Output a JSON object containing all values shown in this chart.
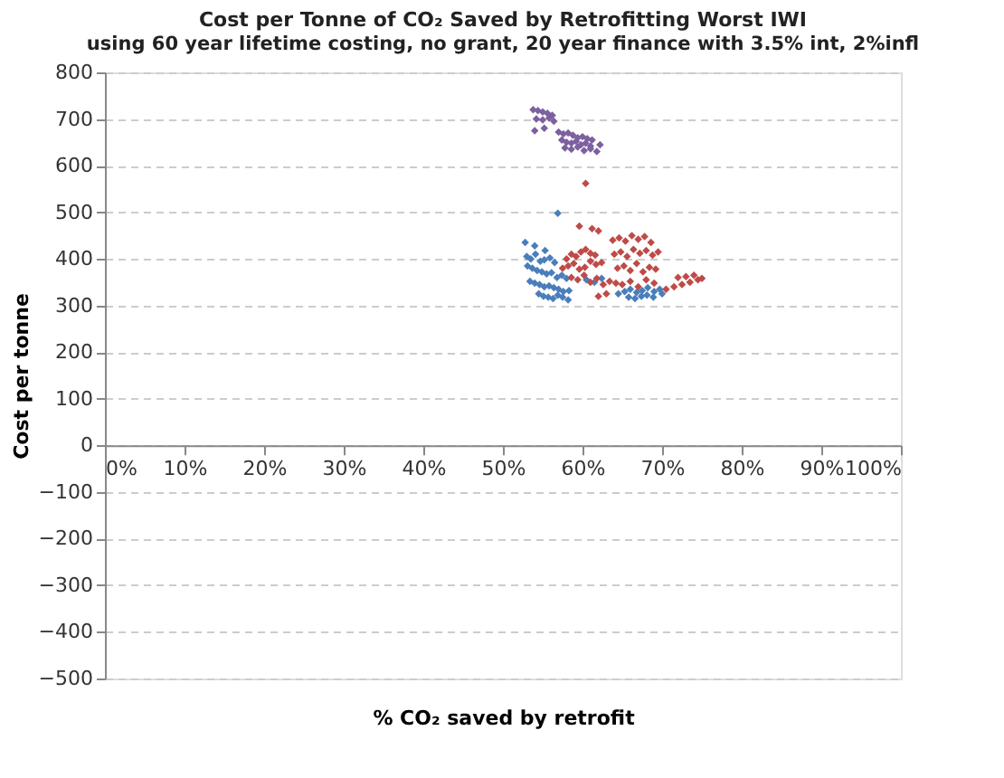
{
  "chart_data": {
    "type": "scatter",
    "title": "Cost per Tonne of CO₂ Saved by Retrofitting Worst IWI",
    "subtitle": "using 60 year lifetime costing, no grant, 20 year finance with 3.5% int, 2%infl",
    "xlabel": "% CO₂ saved by retrofit",
    "ylabel": "Cost per tonne",
    "xlim": [
      0,
      100
    ],
    "ylim": [
      -500,
      800
    ],
    "xticks": [
      {
        "value": 0,
        "label": "0%"
      },
      {
        "value": 10,
        "label": "10%"
      },
      {
        "value": 20,
        "label": "20%"
      },
      {
        "value": 30,
        "label": "30%"
      },
      {
        "value": 40,
        "label": "40%"
      },
      {
        "value": 50,
        "label": "50%"
      },
      {
        "value": 60,
        "label": "60%"
      },
      {
        "value": 70,
        "label": "70%"
      },
      {
        "value": 80,
        "label": "80%"
      },
      {
        "value": 90,
        "label": "90%"
      },
      {
        "value": 100,
        "label": "100%"
      }
    ],
    "yticks": [
      -500,
      -400,
      -300,
      -200,
      -100,
      0,
      100,
      200,
      300,
      400,
      500,
      600,
      700,
      800
    ],
    "grid": "y",
    "marker": "diamond",
    "series": [
      {
        "color": "#4a7ebb",
        "x": [
          52.8,
          54.0,
          55.3,
          53.0,
          53.5,
          54.1,
          54.7,
          55.2,
          55.9,
          56.5,
          53.1,
          53.7,
          54.3,
          54.9,
          55.5,
          56.1,
          56.8,
          57.4,
          58.0,
          53.4,
          54.0,
          54.6,
          55.2,
          55.8,
          56.4,
          57.0,
          57.6,
          58.3,
          54.5,
          55.1,
          55.7,
          56.3,
          56.9,
          57.5,
          58.2,
          56.9,
          60.5,
          61.5,
          62.4,
          64.5,
          65.3,
          66.0,
          66.8,
          67.5,
          68.2,
          69.0,
          69.7,
          65.8,
          66.6,
          67.4,
          68.1,
          68.9,
          70.0
        ],
        "values": [
          435,
          428,
          418,
          405,
          400,
          410,
          395,
          398,
          402,
          392,
          385,
          380,
          375,
          372,
          368,
          370,
          360,
          365,
          358,
          352,
          348,
          345,
          340,
          342,
          338,
          335,
          330,
          332,
          325,
          320,
          318,
          315,
          322,
          318,
          312,
          498,
          355,
          350,
          358,
          325,
          330,
          335,
          328,
          332,
          338,
          330,
          335,
          318,
          315,
          320,
          322,
          318,
          325
        ]
      },
      {
        "color": "#be4b48",
        "x": [
          60.4,
          59.6,
          61.2,
          62.0,
          58.0,
          58.6,
          59.2,
          59.8,
          60.4,
          61.0,
          61.6,
          57.5,
          58.2,
          58.9,
          59.6,
          60.3,
          61.0,
          61.7,
          62.4,
          58.6,
          59.4,
          60.2,
          61.0,
          61.8,
          62.6,
          63.4,
          64.2,
          63.8,
          64.6,
          65.4,
          66.2,
          67.0,
          67.8,
          68.6,
          64.0,
          64.8,
          65.6,
          66.4,
          67.2,
          68.0,
          68.8,
          69.5,
          64.4,
          65.2,
          66.0,
          66.8,
          67.6,
          68.4,
          69.2,
          65.0,
          66.0,
          67.0,
          68.0,
          69.0,
          70.5,
          71.5,
          72.5,
          73.5,
          74.5,
          72.0,
          73.0,
          74.0,
          75.0,
          62.0,
          63.0
        ],
        "values": [
          562,
          470,
          465,
          460,
          400,
          410,
          405,
          415,
          420,
          412,
          408,
          380,
          385,
          390,
          378,
          382,
          395,
          388,
          392,
          360,
          355,
          365,
          350,
          358,
          345,
          352,
          348,
          440,
          445,
          438,
          450,
          442,
          448,
          435,
          410,
          415,
          405,
          420,
          412,
          418,
          408,
          415,
          380,
          385,
          375,
          390,
          372,
          382,
          378,
          345,
          352,
          340,
          355,
          348,
          335,
          340,
          345,
          350,
          355,
          360,
          362,
          365,
          358,
          320,
          325
        ]
      },
      {
        "color": "#7d60a0",
        "x": [
          53.8,
          54.4,
          55.0,
          55.6,
          56.2,
          54.2,
          55.0,
          55.8,
          56.4,
          54.0,
          55.2,
          57.0,
          57.6,
          58.2,
          58.8,
          59.4,
          60.0,
          60.6,
          61.2,
          57.4,
          58.0,
          58.6,
          59.2,
          59.8,
          60.4,
          61.0,
          62.2,
          57.8,
          58.6,
          59.4,
          60.2,
          61.0,
          61.8
        ],
        "values": [
          720,
          718,
          715,
          712,
          708,
          700,
          698,
          702,
          695,
          675,
          680,
          672,
          668,
          670,
          665,
          660,
          662,
          658,
          655,
          655,
          650,
          648,
          652,
          645,
          648,
          642,
          645,
          638,
          635,
          640,
          632,
          636,
          630
        ]
      }
    ]
  }
}
